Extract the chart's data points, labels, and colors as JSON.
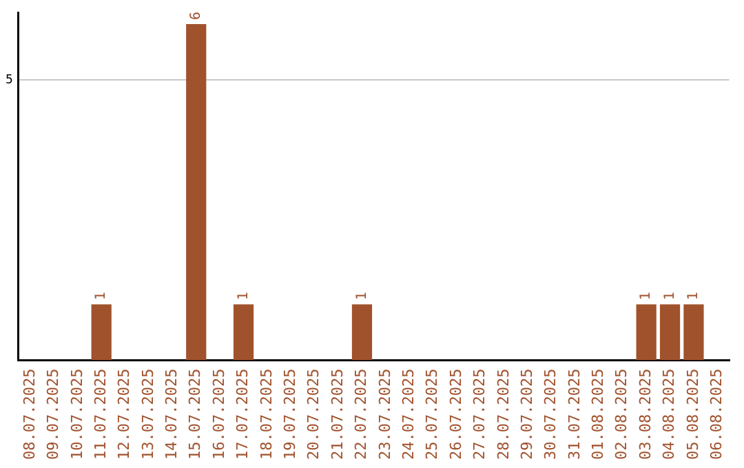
{
  "chart_data": {
    "type": "bar",
    "categories": [
      "08.07.2025",
      "09.07.2025",
      "10.07.2025",
      "11.07.2025",
      "12.07.2025",
      "13.07.2025",
      "14.07.2025",
      "15.07.2025",
      "16.07.2025",
      "17.07.2025",
      "18.07.2025",
      "19.07.2025",
      "20.07.2025",
      "21.07.2025",
      "22.07.2025",
      "23.07.2025",
      "24.07.2025",
      "25.07.2025",
      "26.07.2025",
      "27.07.2025",
      "28.07.2025",
      "29.07.2025",
      "30.07.2025",
      "31.07.2025",
      "01.08.2025",
      "02.08.2025",
      "03.08.2025",
      "04.08.2025",
      "05.08.2025",
      "06.08.2025"
    ],
    "values": [
      0,
      0,
      0,
      1,
      0,
      0,
      0,
      6,
      0,
      1,
      0,
      0,
      0,
      0,
      1,
      0,
      0,
      0,
      0,
      0,
      0,
      0,
      0,
      0,
      0,
      0,
      1,
      1,
      1,
      0
    ],
    "value_labels": [
      null,
      null,
      null,
      "1",
      null,
      null,
      null,
      "6",
      null,
      "1",
      null,
      null,
      null,
      null,
      "1",
      null,
      null,
      null,
      null,
      null,
      null,
      null,
      null,
      null,
      null,
      null,
      "1",
      "1",
      "1",
      null
    ],
    "color": "#a0522d",
    "ylim": [
      0,
      6.2
    ],
    "yticks": [
      5
    ],
    "grid": "y",
    "legend": false
  }
}
